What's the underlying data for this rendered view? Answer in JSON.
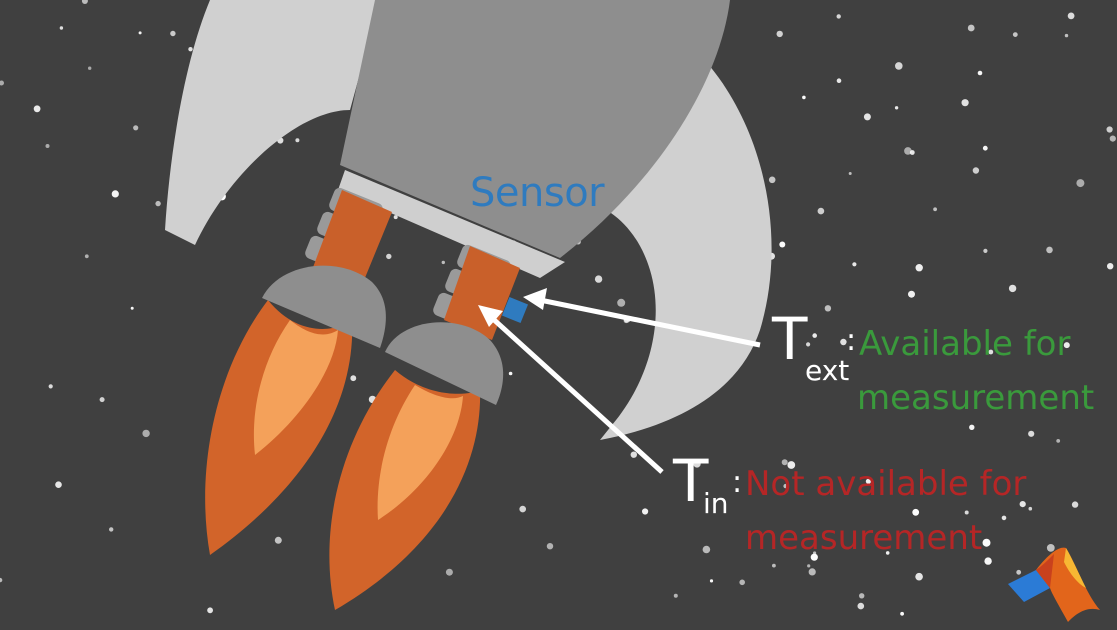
{
  "sensor_label": "Sensor",
  "t_ext": {
    "symbol": "T",
    "subscript": "ext",
    "separator": ":",
    "status_line1": "Available for",
    "status_line2": "measurement",
    "status_color": "#3a9a3c"
  },
  "t_in": {
    "symbol": "T",
    "subscript": "in",
    "separator": ":",
    "status_line1": "Not available for",
    "status_line2": "measurement",
    "status_color": "#b52626"
  },
  "colors": {
    "background": "#404040",
    "rocket_body": "#8e8e8e",
    "rocket_fins": "#cfcfcf",
    "engine_pipe": "#c9602a",
    "flame_outer": "#d2642a",
    "flame_inner": "#f4a15a",
    "sensor": "#2f7bbf",
    "arrow": "#ffffff"
  },
  "logo_icon": "matlab-logo-icon"
}
